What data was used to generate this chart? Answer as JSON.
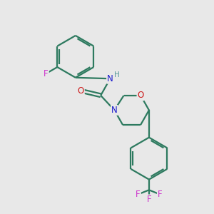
{
  "background_color": "#e8e8e8",
  "bond_color": "#2d7a5f",
  "N_color": "#1a1acc",
  "O_color": "#cc1a1a",
  "F_color": "#cc33cc",
  "H_color": "#559999",
  "figsize": [
    3.0,
    3.0
  ],
  "dpi": 100,
  "xlim": [
    0,
    10
  ],
  "ylim": [
    0,
    10
  ]
}
